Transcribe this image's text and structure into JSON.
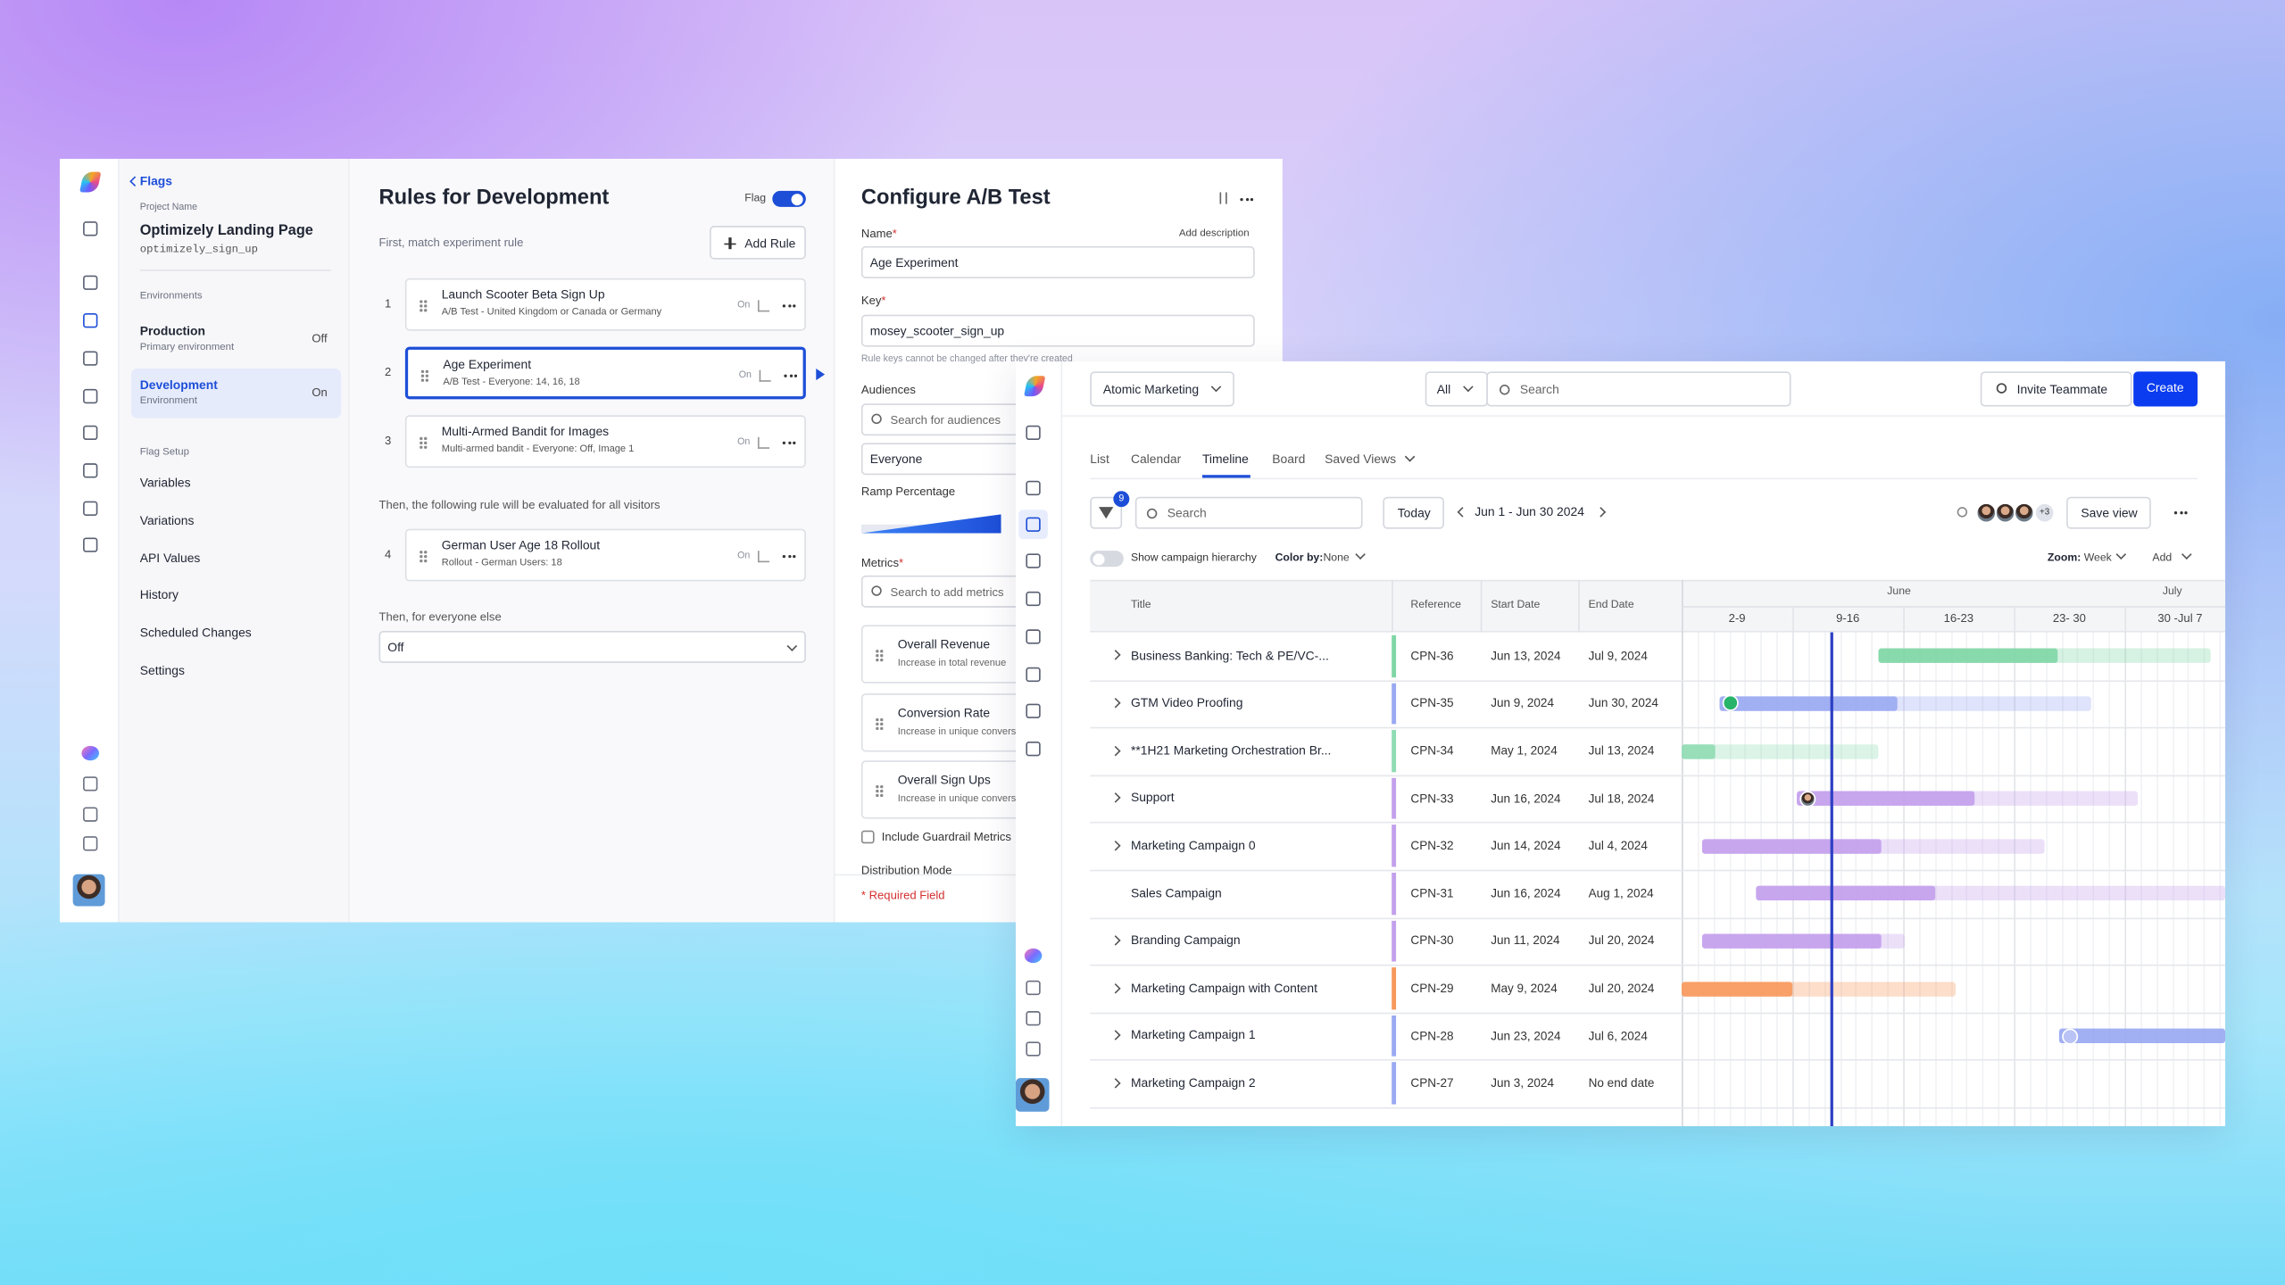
{
  "left_panel": {
    "back_link": "Flags",
    "project_label": "Project Name",
    "project_name": "Optimizely Landing Page",
    "project_key": "optimizely_sign_up",
    "environments_label": "Environments",
    "environments": [
      {
        "name": "Production",
        "description": "Primary environment",
        "status": "Off"
      },
      {
        "name": "Development",
        "description": "Environment",
        "status": "On"
      }
    ],
    "flag_setup_label": "Flag Setup",
    "flag_setup": [
      "Variables",
      "Variations",
      "API Values",
      "History",
      "Scheduled Changes",
      "Settings"
    ]
  },
  "rules_panel": {
    "title": "Rules for Development",
    "flag_label": "Flag",
    "subtitle": "First, match experiment rule",
    "add_rule": "Add Rule",
    "rules": [
      {
        "number": 1,
        "name": "Launch Scooter Beta Sign Up",
        "description": "A/B Test - United Kingdom or Canada or Germany",
        "status": "On"
      },
      {
        "number": 2,
        "name": "Age Experiment",
        "description": "A/B Test - Everyone: 14, 16, 18",
        "status": "On"
      },
      {
        "number": 3,
        "name": "Multi-Armed Bandit for Images",
        "description": "Multi-armed bandit - Everyone: Off, Image 1",
        "status": "On"
      }
    ],
    "then_label": "Then, the following rule will be evaluated for all visitors",
    "everyone_rule": {
      "number": 4,
      "name": "German User Age 18 Rollout",
      "description": "Rollout - German Users: 18",
      "status": "On"
    },
    "else_label": "Then, for everyone else",
    "else_value": "Off"
  },
  "config_panel": {
    "title": "Configure A/B Test",
    "name_label": "Name",
    "required_mark": "*",
    "add_description": "Add description",
    "name_value": "Age Experiment",
    "key_label": "Key",
    "key_value": "mosey_scooter_sign_up",
    "key_hint": "Rule keys cannot be changed after they're created",
    "audiences_label": "Audiences",
    "audience_search": "Search for audiences",
    "audience_value": "Everyone",
    "ramp_label": "Ramp Percentage",
    "metrics_label": "Metrics",
    "metric_search": "Search to add metrics",
    "metrics": [
      {
        "name": "Overall Revenue",
        "description": "Increase in total revenue"
      },
      {
        "name": "Conversion Rate",
        "description": "Increase in unique conversions"
      },
      {
        "name": "Overall Sign Ups",
        "description": "Increase in unique conversions"
      }
    ],
    "guardrail": "Include Guardrail Metrics",
    "distribution_label": "Distribution Mode",
    "required_note": "* Required Field"
  },
  "campaign_app": {
    "workspace": "Atomic Marketing",
    "scope": "All",
    "search_placeholder": "Search",
    "invite": "Invite Teammate",
    "create": "Create",
    "tabs": [
      "List",
      "Calendar",
      "Timeline",
      "Board",
      "Saved Views"
    ],
    "filter_count": 9,
    "toolbar_search": "Search",
    "today": "Today",
    "date_range": "Jun 1 - Jun 30 2024",
    "extra_members": "+3",
    "save_view": "Save view",
    "hierarchy": "Show campaign hierarchy",
    "color_by_label": "Color by:",
    "color_by_value": "None",
    "zoom_label": "Zoom:",
    "zoom_value": "Week",
    "add": "Add",
    "columns": [
      "Title",
      "Reference",
      "Start Date",
      "End Date"
    ],
    "months": [
      "June",
      "July"
    ],
    "weeks": [
      "2-9",
      "9-16",
      "16-23",
      "23- 30",
      "30 -Jul 7"
    ],
    "rows": [
      {
        "title": "Business Banking: Tech & PE/VC-...",
        "reference": "CPN-36",
        "start": "Jun 13, 2024",
        "end": "Jul 9, 2024",
        "color": "#7fd6a6"
      },
      {
        "title": "GTM Video Proofing",
        "reference": "CPN-35",
        "start": "Jun 9, 2024",
        "end": "Jun 30, 2024",
        "color": "#9aa9f2"
      },
      {
        "title": "**1H21 Marketing Orchestration Br...",
        "reference": "CPN-34",
        "start": "May 1, 2024",
        "end": "Jul 13, 2024",
        "color": "#8fdcb4"
      },
      {
        "title": "Support",
        "reference": "CPN-33",
        "start": "Jun 16, 2024",
        "end": "Jul 18, 2024",
        "color": "#c3a0ec"
      },
      {
        "title": "Marketing Campaign 0",
        "reference": "CPN-32",
        "start": "Jun 14, 2024",
        "end": "Jul 4, 2024",
        "color": "#c3a0ec"
      },
      {
        "title": "Sales Campaign",
        "reference": "CPN-31",
        "start": "Jun 16, 2024",
        "end": "Aug 1, 2024",
        "color": "#c3a0ec"
      },
      {
        "title": "Branding Campaign",
        "reference": "CPN-30",
        "start": "Jun 11, 2024",
        "end": "Jul 20, 2024",
        "color": "#c3a0ec"
      },
      {
        "title": "Marketing Campaign with Content",
        "reference": "CPN-29",
        "start": "May 9, 2024",
        "end": "Jul 20, 2024",
        "color": "#f7995c"
      },
      {
        "title": "Marketing Campaign 1",
        "reference": "CPN-28",
        "start": "Jun 23, 2024",
        "end": "Jul 6, 2024",
        "color": "#9aa9f2"
      },
      {
        "title": "Marketing Campaign 2",
        "reference": "CPN-27",
        "start": "Jun 3, 2024",
        "end": "No end date",
        "color": "#9aa9f2"
      }
    ]
  }
}
